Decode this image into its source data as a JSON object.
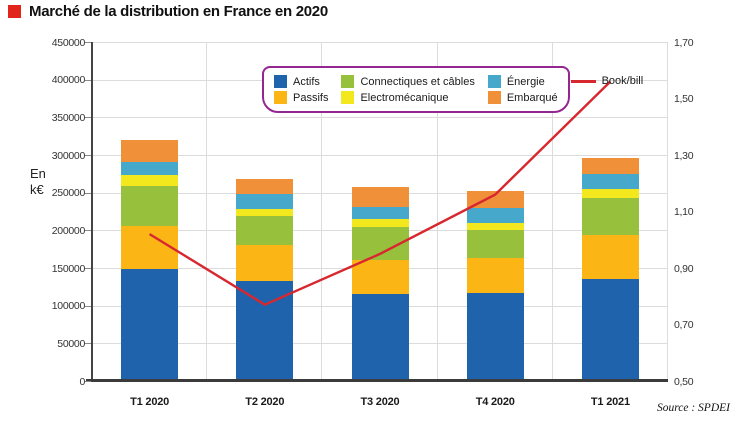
{
  "header": {
    "title": "Marché de la distribution en France en 2020",
    "accent_color": "#e1251b"
  },
  "source": "Source : SPDEI",
  "chart_data": {
    "type": "bar",
    "stacked": true,
    "title": "Marché de la distribution en France en 2020",
    "ylabel": "En k€",
    "categories": [
      "T1 2020",
      "T2 2020",
      "T3 2020",
      "T4 2020",
      "T1 2021"
    ],
    "series": [
      {
        "name": "Actifs",
        "color": "#1f63ac",
        "values": [
          149000,
          133000,
          116000,
          117000,
          136000
        ]
      },
      {
        "name": "Passifs",
        "color": "#fbb616",
        "values": [
          57000,
          47000,
          45000,
          46000,
          58000
        ]
      },
      {
        "name": "Connectiques et câbles",
        "color": "#97c13c",
        "values": [
          53000,
          39000,
          44000,
          37000,
          49000
        ]
      },
      {
        "name": "Electromécanique",
        "color": "#f3e71e",
        "values": [
          15000,
          10000,
          10000,
          10000,
          12000
        ]
      },
      {
        "name": "Énergie",
        "color": "#46a9cb",
        "values": [
          17000,
          19000,
          16000,
          20000,
          20000
        ]
      },
      {
        "name": "Embarqué",
        "color": "#f0913a",
        "values": [
          29000,
          20000,
          27000,
          22000,
          21000
        ]
      }
    ],
    "line_series": {
      "name": "Book/bill",
      "color": "#d7282f",
      "values": [
        1.02,
        0.77,
        0.95,
        1.16,
        1.56
      ]
    },
    "left_axis": {
      "min": 0,
      "max": 450000,
      "step": 50000,
      "tick_labels": [
        "0",
        "50000",
        "100000",
        "150000",
        "200000",
        "250000",
        "300000",
        "350000",
        "400000",
        "450000"
      ]
    },
    "right_axis": {
      "min": 0.5,
      "max": 1.7,
      "step": 0.2,
      "tick_labels": [
        "0,50",
        "0,70",
        "0,90",
        "1,10",
        "1,30",
        "1,50",
        "1,70"
      ]
    },
    "grid": true,
    "legend_position": "top-center",
    "legend_border_color": "#93278f",
    "totals": [
      320000,
      268000,
      258000,
      252000,
      296000
    ]
  }
}
